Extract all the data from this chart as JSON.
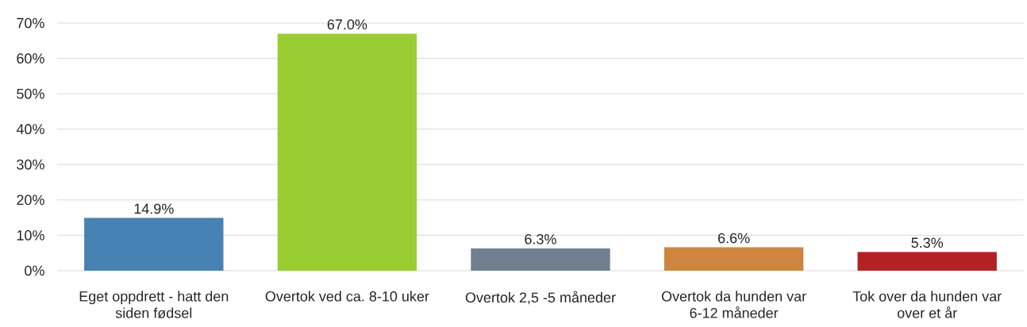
{
  "chart_data": {
    "type": "bar",
    "categories": [
      "Eget oppdrett - hatt den siden fødsel",
      "Overtok ved ca. 8-10 uker",
      "Overtok 2,5 -5 måneder",
      "Overtok da hunden var 6-12 måneder",
      "Tok over da hunden var over et år"
    ],
    "values": [
      14.9,
      67.0,
      6.3,
      6.6,
      5.3
    ],
    "colors": [
      "#4682b4",
      "#9acd32",
      "#708090",
      "#cd853f",
      "#b22222"
    ],
    "value_labels": [
      "14.9%",
      "67.0%",
      "6.3%",
      "6.6%",
      "5.3%"
    ],
    "ylim": [
      0,
      70
    ],
    "yticks": [
      {
        "value": 0,
        "label": "0%"
      },
      {
        "value": 10,
        "label": "10%"
      },
      {
        "value": 20,
        "label": "20%"
      },
      {
        "value": 30,
        "label": "30%"
      },
      {
        "value": 40,
        "label": "40%"
      },
      {
        "value": 50,
        "label": "50%"
      },
      {
        "value": 60,
        "label": "60%"
      },
      {
        "value": 70,
        "label": "70%"
      }
    ],
    "grid": "y"
  }
}
